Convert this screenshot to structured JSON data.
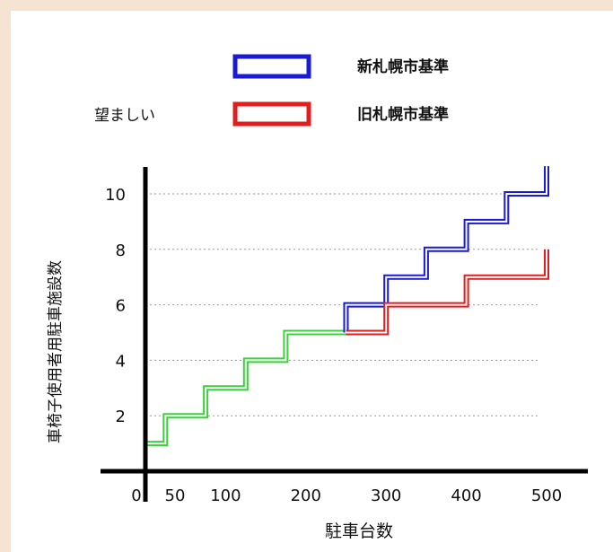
{
  "chart_data": {
    "type": "line",
    "step": true,
    "xlabel": "駐車台数",
    "ylabel": "車椅子使用者用駐車施設数",
    "x_ticks": [
      0,
      50,
      100,
      200,
      300,
      400,
      500
    ],
    "y_ticks": [
      2,
      4,
      6,
      8,
      10
    ],
    "xlim": [
      0,
      500
    ],
    "ylim": [
      0,
      11
    ],
    "grid": "y-dotted",
    "legend_position": "top",
    "legend_side_label": "望ましい",
    "series": [
      {
        "name": "",
        "color": "#3bd13b",
        "x": [
          0,
          25,
          25,
          75,
          75,
          125,
          125,
          175,
          175,
          250
        ],
        "y": [
          1,
          1,
          2,
          2,
          3,
          3,
          4,
          4,
          5,
          5
        ]
      },
      {
        "name": "新札幌市基準",
        "color": "#1a1ad6",
        "x": [
          250,
          250,
          300,
          300,
          350,
          350,
          400,
          400,
          450,
          450,
          500,
          500
        ],
        "y": [
          5,
          6,
          6,
          7,
          7,
          8,
          8,
          9,
          9,
          10,
          10,
          11
        ]
      },
      {
        "name": "旧札幌市基準",
        "color": "#e01e1e",
        "x": [
          250,
          300,
          300,
          400,
          400,
          500,
          500
        ],
        "y": [
          5,
          5,
          6,
          6,
          7,
          7,
          8
        ]
      }
    ]
  }
}
